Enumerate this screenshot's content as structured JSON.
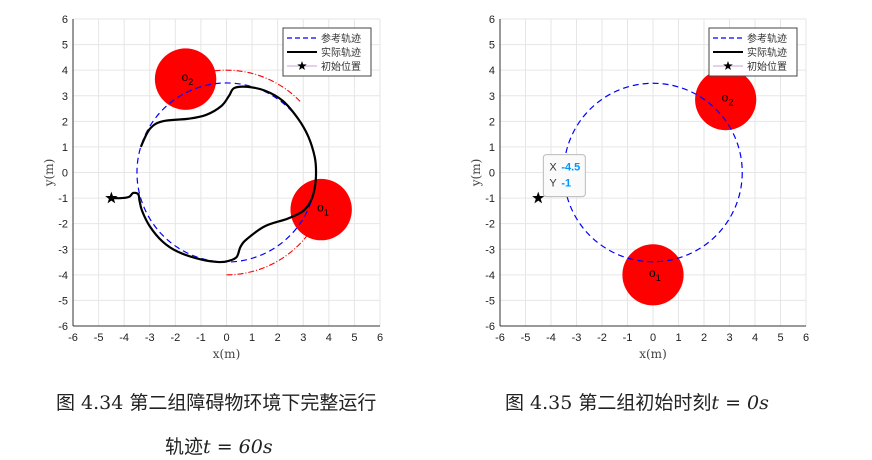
{
  "chart_data": [
    {
      "type": "line",
      "xlabel": "x(m)",
      "ylabel": "y(m)",
      "xlim": [
        -6,
        6
      ],
      "ylim": [
        -6,
        6
      ],
      "ticks": [
        -6,
        -5,
        -4,
        -3,
        -2,
        -1,
        0,
        1,
        2,
        3,
        4,
        5,
        6
      ],
      "grid": true,
      "legend_position": "top-right",
      "legend": [
        "参考轨迹",
        "实际轨迹",
        "初始位置"
      ],
      "reference_circle": {
        "center": [
          0,
          0
        ],
        "radius": 3.5,
        "color": "#0000ff",
        "style": "dashed"
      },
      "safety_arcs": [
        {
          "center": [
            0,
            0
          ],
          "radius": 4,
          "from_deg": 44,
          "to_deg": 97,
          "color": "#ff0000",
          "style": "dash-dot"
        },
        {
          "center": [
            0,
            0
          ],
          "radius": 4,
          "from_deg": 270,
          "to_deg": 323,
          "color": "#ff0000",
          "style": "dash-dot"
        }
      ],
      "obstacles": [
        {
          "label": "o",
          "sub": "1",
          "center": [
            3.7,
            -1.45
          ],
          "radius": 1.0,
          "color": "#ff0000"
        },
        {
          "label": "o",
          "sub": "2",
          "center": [
            -1.6,
            3.65
          ],
          "radius": 1.0,
          "color": "#ff0000"
        }
      ],
      "start": [
        -4.5,
        -1
      ],
      "actual_trajectory": {
        "color": "#000000",
        "x": [
          -4.5,
          -4.1,
          -3.8,
          -3.65,
          -3.45,
          -3.4,
          -3.3,
          -3.0,
          -2.5,
          -1.9,
          -1.0,
          -0.3,
          0.1,
          0.4,
          0.55,
          0.8,
          1.5,
          2.4,
          3.0,
          3.3,
          3.45,
          3.5,
          3.45,
          3.2,
          2.8,
          2.2,
          1.5,
          0.8,
          0.3,
          0.1,
          -0.2,
          -0.8,
          -1.5,
          -2.5,
          -3.0,
          -3.35
        ],
        "y": [
          -1,
          -1,
          -0.95,
          -0.8,
          -0.85,
          -1.1,
          -1.5,
          -2.1,
          -2.7,
          -3.1,
          -3.4,
          -3.5,
          -3.45,
          -3.3,
          -2.9,
          -2.6,
          -2.1,
          -1.8,
          -1.5,
          -1.1,
          -0.6,
          0,
          0.6,
          1.4,
          2.1,
          2.8,
          3.2,
          3.35,
          3.3,
          3.0,
          2.6,
          2.25,
          2.1,
          2.0,
          1.7,
          1.0
        ]
      },
      "caption": {
        "prefix": "图 4.34 第二组障碍物环境下完整运行",
        "line2": "轨迹",
        "math": "t = 60s"
      }
    },
    {
      "type": "line",
      "xlabel": "x(m)",
      "ylabel": "y(m)",
      "xlim": [
        -6,
        6
      ],
      "ylim": [
        -6,
        6
      ],
      "ticks": [
        -6,
        -5,
        -4,
        -3,
        -2,
        -1,
        0,
        1,
        2,
        3,
        4,
        5,
        6
      ],
      "grid": true,
      "legend_position": "top-right",
      "legend": [
        "参考轨迹",
        "实际轨迹",
        "初始位置"
      ],
      "reference_circle": {
        "center": [
          0,
          0
        ],
        "radius": 3.5,
        "color": "#0000ff",
        "style": "dashed"
      },
      "obstacles": [
        {
          "label": "o",
          "sub": "1",
          "center": [
            0,
            -4
          ],
          "radius": 1.0,
          "color": "#ff0000"
        },
        {
          "label": "o",
          "sub": "2",
          "center": [
            2.85,
            2.85
          ],
          "radius": 1.0,
          "color": "#ff0000"
        }
      ],
      "start": [
        -4.5,
        -1
      ],
      "datatip": {
        "x_label": "X",
        "x_value": "-4.5",
        "y_label": "Y",
        "y_value": "-1",
        "value_color": "#0095ff"
      },
      "caption": {
        "prefix": "图 4.35 第二组初始时刻",
        "math": "t = 0s"
      }
    }
  ]
}
